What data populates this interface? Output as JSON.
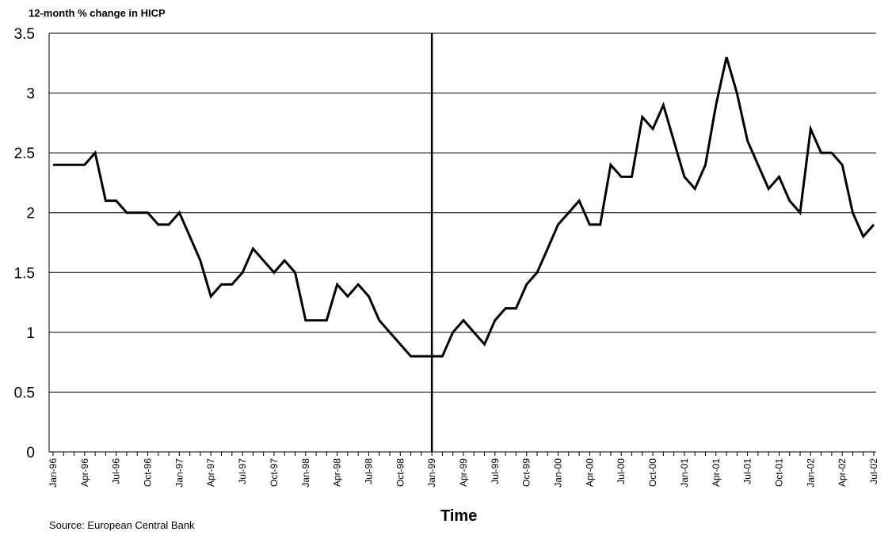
{
  "chart_data": {
    "type": "line",
    "title": "",
    "ylabel": "12-month % change in HICP",
    "xlabel": "Time",
    "source": "Source:  European Central Bank",
    "ylim": [
      0,
      3.5
    ],
    "yticks": [
      "0",
      "0.5",
      "1",
      "1.5",
      "2",
      "2.5",
      "3",
      "3.5"
    ],
    "grid": true,
    "legend": "none",
    "line_color": "#000000",
    "x_tick_labels": [
      "Jan-96",
      "Apr-96",
      "Jul-96",
      "Oct-96",
      "Jan-97",
      "Apr-97",
      "Jul-97",
      "Oct-97",
      "Jan-98",
      "Apr-98",
      "Jul-98",
      "Oct-98",
      "Jan-99",
      "Apr-99",
      "Jul-99",
      "Oct-99",
      "Jan-00",
      "Apr-00",
      "Jul-00",
      "Oct-00",
      "Jan-01",
      "Apr-01",
      "Jul-01",
      "Oct-01",
      "Jan-02",
      "Apr-02",
      "Jul-02"
    ],
    "vertical_marker": "Jan-99",
    "series": [
      {
        "values": [
          2.4,
          2.4,
          2.4,
          2.4,
          2.5,
          2.1,
          2.1,
          2.0,
          2.0,
          2.0,
          1.9,
          1.9,
          2.0,
          1.8,
          1.6,
          1.3,
          1.4,
          1.4,
          1.5,
          1.7,
          1.6,
          1.5,
          1.6,
          1.5,
          1.1,
          1.1,
          1.1,
          1.4,
          1.3,
          1.4,
          1.3,
          1.1,
          1.0,
          0.9,
          0.8,
          0.8,
          0.8,
          0.8,
          1.0,
          1.1,
          1.0,
          0.9,
          1.1,
          1.2,
          1.2,
          1.4,
          1.5,
          1.7,
          1.9,
          2.0,
          2.1,
          1.9,
          1.9,
          2.4,
          2.3,
          2.3,
          2.8,
          2.7,
          2.9,
          2.6,
          2.3,
          2.2,
          2.4,
          2.9,
          3.3,
          3.0,
          2.6,
          2.4,
          2.2,
          2.3,
          2.1,
          2.0,
          2.7,
          2.5,
          2.5,
          2.4,
          2.0,
          1.8,
          1.9
        ]
      }
    ]
  }
}
